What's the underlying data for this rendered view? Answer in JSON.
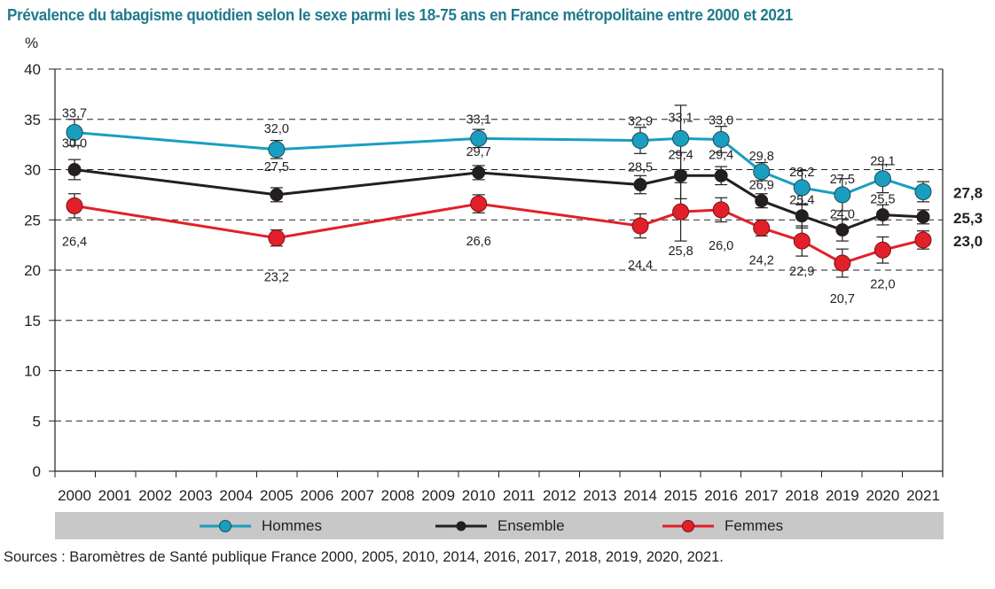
{
  "chart_data": {
    "type": "line",
    "title": "Prévalence du tabagisme quotidien selon le sexe parmi les 18-75 ans en France métropolitaine entre 2000 et 2021",
    "ylabel": "%",
    "xlabel": "",
    "ylim": [
      0,
      40
    ],
    "yticks": [
      "0",
      "5",
      "10",
      "15",
      "20",
      "25",
      "30",
      "35",
      "40"
    ],
    "ytick_values": [
      0,
      5,
      10,
      15,
      20,
      25,
      30,
      35,
      40
    ],
    "categories": [
      "2000",
      "2001",
      "2002",
      "2003",
      "2004",
      "2005",
      "2006",
      "2007",
      "2008",
      "2009",
      "2010",
      "2011",
      "2012",
      "2013",
      "2014",
      "2015",
      "2016",
      "2017",
      "2018",
      "2019",
      "2020",
      "2021"
    ],
    "grid": "horizontal-dashed",
    "legend_position": "bottom",
    "series": [
      {
        "name": "Hommes",
        "color": "#1a9ec0",
        "x": [
          "2000",
          "2005",
          "2010",
          "2014",
          "2015",
          "2016",
          "2017",
          "2018",
          "2019",
          "2020",
          "2021"
        ],
        "values": [
          33.7,
          32.0,
          33.1,
          32.9,
          33.1,
          33.0,
          29.8,
          28.2,
          27.5,
          29.1,
          27.8
        ],
        "labels": [
          "33,7",
          "32,0",
          "33,1",
          "32,9",
          "33,1",
          "33,0",
          "29,8",
          "28,2",
          "27,5",
          "29,1",
          "27,8"
        ],
        "error": [
          1.3,
          0.9,
          0.9,
          1.3,
          3.3,
          1.3,
          0.9,
          1.7,
          1.6,
          1.4,
          1.0
        ]
      },
      {
        "name": "Ensemble",
        "color": "#231f20",
        "x": [
          "2000",
          "2005",
          "2010",
          "2014",
          "2015",
          "2016",
          "2017",
          "2018",
          "2019",
          "2020",
          "2021"
        ],
        "values": [
          30.0,
          27.5,
          29.7,
          28.5,
          29.4,
          29.4,
          26.9,
          25.4,
          24.0,
          25.5,
          25.3
        ],
        "labels": [
          "30,0",
          "27,5",
          "29,7",
          "28,5",
          "29,4",
          "29,4",
          "26,9",
          "25,4",
          "24,0",
          "25,5",
          "25,3"
        ],
        "error": [
          1.0,
          0.7,
          0.7,
          0.9,
          2.3,
          0.9,
          0.7,
          1.2,
          1.1,
          1.0,
          0.7
        ]
      },
      {
        "name": "Femmes",
        "color": "#e2202a",
        "x": [
          "2000",
          "2005",
          "2010",
          "2014",
          "2015",
          "2016",
          "2017",
          "2018",
          "2019",
          "2020",
          "2021"
        ],
        "values": [
          26.4,
          23.2,
          26.6,
          24.4,
          25.8,
          26.0,
          24.2,
          22.9,
          20.7,
          22.0,
          23.0
        ],
        "labels": [
          "26,4",
          "23,2",
          "26,6",
          "24,4",
          "25,8",
          "26,0",
          "24,2",
          "22,9",
          "20,7",
          "22,0",
          "23,0"
        ],
        "error": [
          1.2,
          0.8,
          0.9,
          1.2,
          2.9,
          1.2,
          0.8,
          1.5,
          1.4,
          1.3,
          0.9
        ]
      }
    ],
    "end_labels": [
      "27,8",
      "25,3",
      "23,0"
    ],
    "source": "Sources : Baromètres de Santé publique France 2000, 2005, 2010, 2014, 2016, 2017, 2018, 2019, 2020, 2021."
  }
}
